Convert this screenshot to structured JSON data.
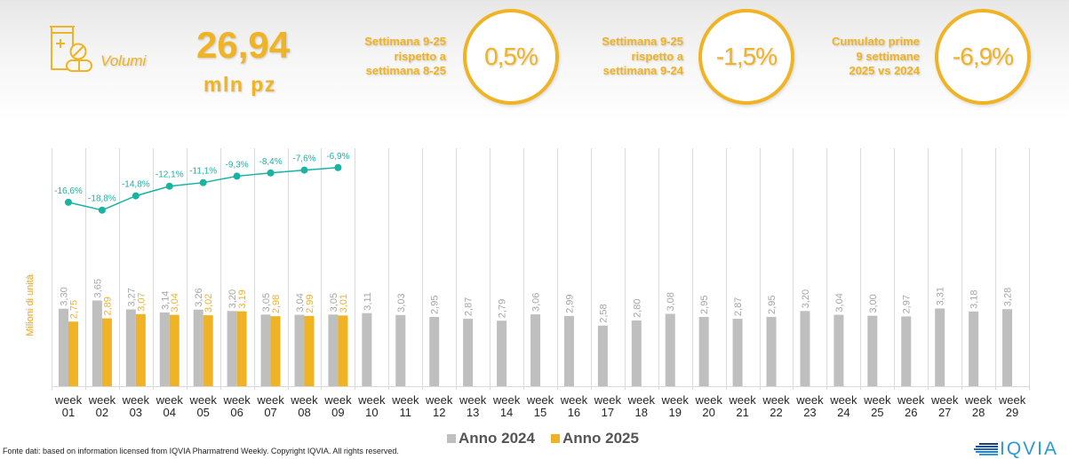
{
  "header": {
    "icon": "medicine-bottle-pills-icon",
    "category_label": "Volumi",
    "total_value": "26,94",
    "total_unit": "mln pz"
  },
  "kpis": [
    {
      "label_lines": [
        "Settimana 9-25",
        "rispetto a",
        "settimana 8-25"
      ],
      "value": "0,5%"
    },
    {
      "label_lines": [
        "Settimana 9-25",
        "rispetto a",
        "settimana 9-24"
      ],
      "value": "-1,5%"
    },
    {
      "label_lines": [
        "Cumulato prime",
        "9 settimane",
        "2025 vs 2024"
      ],
      "value": "-6,9%"
    }
  ],
  "colors": {
    "accent": "#f0b323",
    "bar_2024": "#bfbfbf",
    "bar_2024_label": "#a6a6a6",
    "bar_2025": "#f0b323",
    "line": "#17b3a3",
    "axis_text": "#262626",
    "grid": "#d9d9d9"
  },
  "chart_data": {
    "type": "bar",
    "title": "",
    "xlabel": "",
    "ylabel": "Milioni di unità",
    "categories": [
      "week 01",
      "week 02",
      "week 03",
      "week 04",
      "week 05",
      "week 06",
      "week 07",
      "week 08",
      "week 09",
      "week 10",
      "week 11",
      "week 12",
      "week 13",
      "week 14",
      "week 15",
      "week 16",
      "week 17",
      "week 18",
      "week 19",
      "week 20",
      "week 21",
      "week 22",
      "week 23",
      "week 24",
      "week 25",
      "week 26",
      "week 27",
      "week 28",
      "week 29"
    ],
    "series": [
      {
        "name": "Anno 2024",
        "type": "bar",
        "axis": "primary",
        "values": [
          3.3,
          3.65,
          3.27,
          3.14,
          3.26,
          3.2,
          3.05,
          3.04,
          3.05,
          3.11,
          3.03,
          2.95,
          2.87,
          2.79,
          3.06,
          2.99,
          2.58,
          2.8,
          3.08,
          2.95,
          2.87,
          2.95,
          3.2,
          3.04,
          3.0,
          2.97,
          3.31,
          3.18,
          3.28
        ]
      },
      {
        "name": "Anno 2025",
        "type": "bar",
        "axis": "primary",
        "values": [
          2.75,
          2.89,
          3.07,
          3.04,
          3.02,
          3.19,
          2.98,
          2.99,
          3.01
        ]
      },
      {
        "name": "",
        "type": "line",
        "axis": "secondary",
        "unit": "%",
        "values": [
          -16.6,
          -18.8,
          -14.8,
          -12.1,
          -11.1,
          -9.3,
          -8.4,
          -7.6,
          -6.9
        ]
      }
    ],
    "ylim": [
      0,
      10.13
    ],
    "y2lim": [
      -68.0,
      -1.5
    ],
    "grid": "vertical category separators",
    "decimal_separator": ",",
    "legend": {
      "position": "bottom",
      "entries": [
        "Anno 2024",
        "Anno 2025"
      ]
    }
  },
  "footer": {
    "source": "Fonte dati: based on information licensed from IQVIA Pharmatrend Weekly. Copyright IQVIA. All rights reserved.",
    "logo_text": "IQVIA"
  }
}
